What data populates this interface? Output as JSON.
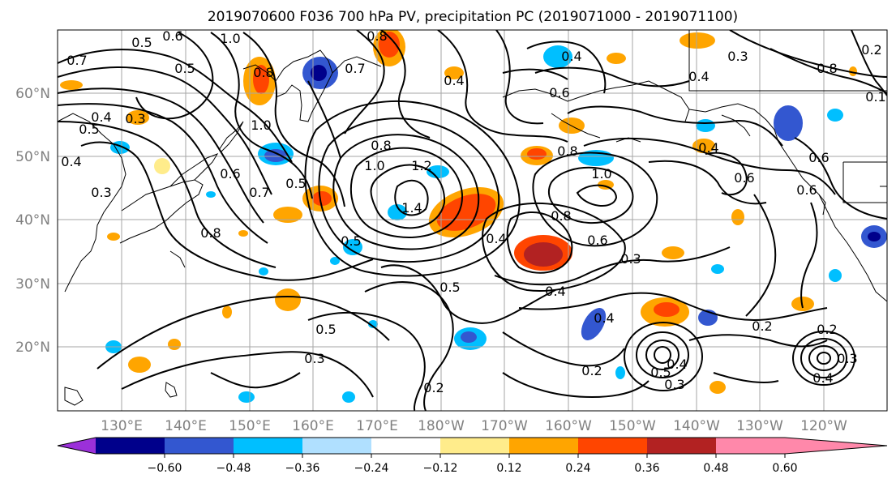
{
  "title": "2019070600 F036 700 hPa PV, precipitation PC (2019071000 - 2019071100)",
  "lat_labels": [
    "60°N",
    "50°N",
    "40°N",
    "30°N",
    "20°N"
  ],
  "lon_labels": [
    "130°E",
    "140°E",
    "150°E",
    "160°E",
    "170°E",
    "180°W",
    "170°W",
    "160°W",
    "150°W",
    "140°W",
    "130°W",
    "120°W"
  ],
  "colorbar": {
    "colors": [
      "#9b30d9",
      "#00008b",
      "#3357d0",
      "#00bfff",
      "#b0e0ff",
      "#ffffff",
      "#ffec8b",
      "#ffa500",
      "#ff4500",
      "#b22222",
      "#ff88aa"
    ],
    "tick_labels": [
      "−0.60",
      "−0.48",
      "−0.36",
      "−0.24",
      "−0.12",
      "0.12",
      "0.24",
      "0.36",
      "0.48",
      "0.60"
    ]
  },
  "contour_labels": [
    "0.5",
    "0.6",
    "1.0",
    "0.7",
    "0.5",
    "0.8",
    "0.8",
    "0.4",
    "0.6",
    "0.3",
    "0.4",
    "0.2",
    "0.3",
    "0.4",
    "0.5",
    "1.0",
    "0.8",
    "1.0",
    "1.2",
    "1.4",
    "0.4",
    "0.5",
    "0.6",
    "0.8",
    "0.4",
    "0.6",
    "0.7",
    "0.8",
    "0.4",
    "0.5",
    "0.3",
    "0.5",
    "0.8",
    "1.0",
    "0.6",
    "0.3",
    "0.4",
    "0.2",
    "0.5",
    "0.4",
    "0.3",
    "0.2",
    "0.3",
    "0.2",
    "0.4",
    "0.2",
    "0.7",
    "0.6",
    "0.3",
    "0.6",
    "0.8",
    "0.4",
    "0.1",
    "0.5",
    "0.4"
  ]
}
